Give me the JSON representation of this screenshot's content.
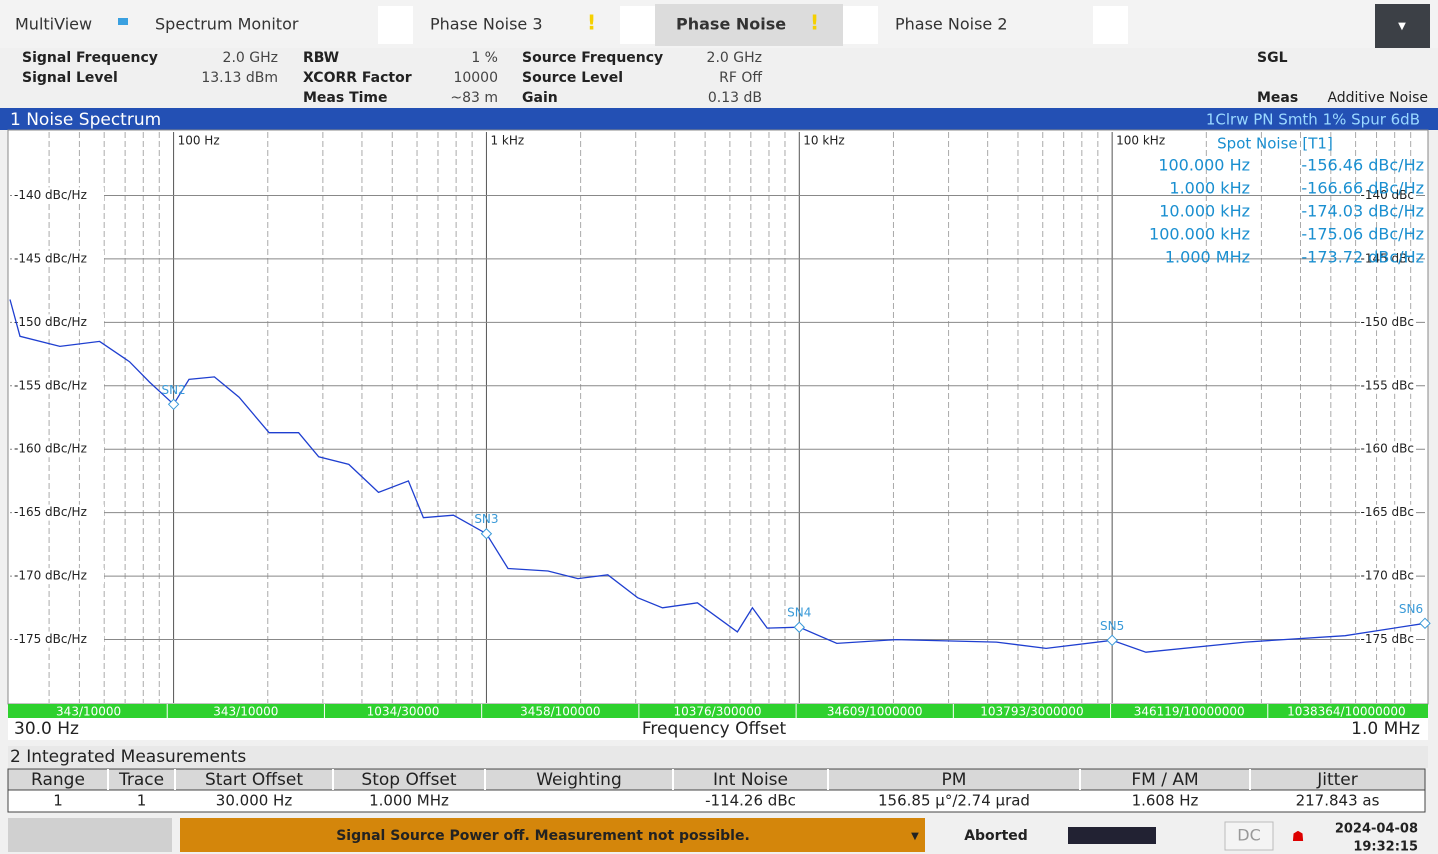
{
  "tabs": [
    {
      "label": "MultiView"
    },
    {
      "label": "Spectrum Monitor"
    },
    {
      "label": "Phase Noise 3",
      "warning": "!"
    },
    {
      "label": "Phase Noise",
      "warning": "!",
      "active": true
    },
    {
      "label": "Phase Noise 2"
    }
  ],
  "settings": [
    [
      {
        "label": "Signal Frequency",
        "value": "2.0 GHz"
      },
      {
        "label": "Signal Level",
        "value": "13.13 dBm"
      }
    ],
    [
      {
        "label": "RBW",
        "value": "1 %"
      },
      {
        "label": "XCORR Factor",
        "value": "10000"
      },
      {
        "label": "Meas Time",
        "value": "~83 m"
      }
    ],
    [
      {
        "label": "Source Frequency",
        "value": "2.0 GHz"
      },
      {
        "label": "Source Level",
        "value": "RF Off"
      },
      {
        "label": "Gain",
        "value": "0.13 dB"
      }
    ]
  ],
  "mode": "SGL",
  "meas": {
    "label": "Meas",
    "value": "Additive Noise"
  },
  "chart_data": {
    "type": "line",
    "title": "1 Noise Spectrum",
    "trace_info": "1Clrw PN Smth 1% Spur 6dB",
    "x_label": "Frequency Offset",
    "x_start_label": "30.0 Hz",
    "x_end_label": "1.0 MHz",
    "log_x": true,
    "xlim": [
      30,
      1000000
    ],
    "xticks": [
      {
        "value": 100,
        "label": "100 Hz"
      },
      {
        "value": 1000,
        "label": "1 kHz"
      },
      {
        "value": 10000,
        "label": "10 kHz"
      },
      {
        "value": 100000,
        "label": "100 kHz"
      }
    ],
    "ylim": [
      -180,
      -135
    ],
    "yticks": [
      {
        "value": -140,
        "label": "-140 dBc/Hz"
      },
      {
        "value": -145,
        "label": "-145 dBc/Hz"
      },
      {
        "value": -150,
        "label": "-150 dBc/Hz"
      },
      {
        "value": -155,
        "label": "-155 dBc/Hz"
      },
      {
        "value": -160,
        "label": "-160 dBc/Hz"
      },
      {
        "value": -165,
        "label": "-165 dBc/Hz"
      },
      {
        "value": -170,
        "label": "-170 dBc/Hz"
      },
      {
        "value": -175,
        "label": "-175 dBc/Hz"
      }
    ],
    "y_right_ticks": [
      {
        "value": -140,
        "label": "-140 dBc"
      },
      {
        "value": -145,
        "label": "-145 dBc"
      },
      {
        "value": -150,
        "label": "-150 dBc"
      },
      {
        "value": -155,
        "label": "-155 dBc"
      },
      {
        "value": -160,
        "label": "-160 dBc"
      },
      {
        "value": -165,
        "label": "-165 dBc"
      },
      {
        "value": -170,
        "label": "-170 dBc"
      },
      {
        "value": -175,
        "label": "-175 dBc"
      }
    ],
    "grid": true,
    "series": [
      {
        "color": "#1f3fd0",
        "x": [
          30,
          32.3,
          43.3,
          58,
          72.3,
          83.7,
          100,
          112,
          135,
          162,
          202,
          251,
          291,
          363,
          452,
          563,
          629,
          784,
          1000,
          1172,
          1573,
          1960,
          2443,
          3043,
          3655,
          4725,
          6339,
          7079,
          7896,
          10000,
          13183,
          20464,
          42658,
          61518,
          100000,
          128233,
          266686,
          555904,
          1000000
        ],
        "values": [
          -148.2,
          -151.1,
          -151.9,
          -151.5,
          -153.1,
          -154.7,
          -156.46,
          -154.5,
          -154.3,
          -155.9,
          -158.7,
          -158.7,
          -160.6,
          -161.2,
          -163.4,
          -162.5,
          -165.4,
          -165.2,
          -166.66,
          -169.4,
          -169.6,
          -170.2,
          -169.9,
          -171.7,
          -172.5,
          -172.1,
          -174.4,
          -172.5,
          -174.1,
          -174.03,
          -175.3,
          -175.0,
          -175.2,
          -175.7,
          -175.06,
          -176.0,
          -175.2,
          -174.7,
          -173.72
        ]
      }
    ],
    "markers": [
      {
        "label": "SN2",
        "x": 100,
        "y": -156.46
      },
      {
        "label": "SN3",
        "x": 1000,
        "y": -166.66
      },
      {
        "label": "SN4",
        "x": 10000,
        "y": -174.03
      },
      {
        "label": "SN5",
        "x": 100000,
        "y": -175.06
      },
      {
        "label": "SN6",
        "x": 1000000,
        "y": -173.72
      }
    ],
    "spot_noise": {
      "title": "Spot Noise [T1]",
      "rows": [
        {
          "offset": "100.000 Hz",
          "value": "-156.46 dBc/Hz"
        },
        {
          "offset": "1.000 kHz",
          "value": "-166.66 dBc/Hz"
        },
        {
          "offset": "10.000 kHz",
          "value": "-174.03 dBc/Hz"
        },
        {
          "offset": "100.000 kHz",
          "value": "-175.06 dBc/Hz"
        },
        {
          "offset": "1.000 MHz",
          "value": "-173.72 dBc/Hz"
        }
      ]
    },
    "segments": [
      "343/10000",
      "343/10000",
      "1034/30000",
      "3458/100000",
      "10376/300000",
      "34609/1000000",
      "103793/3000000",
      "346119/10000000",
      "1038364/10000000"
    ]
  },
  "integrated": {
    "title": "2 Integrated Measurements",
    "columns": [
      "Range",
      "Trace",
      "Start Offset",
      "Stop Offset",
      "Weighting",
      "Int Noise",
      "PM",
      "FM / AM",
      "Jitter"
    ],
    "rows": [
      [
        "1",
        "1",
        "30.000 Hz",
        "1.000 MHz",
        null,
        "-114.26 dBc",
        "156.85 µ°/2.74 µrad",
        "1.608 Hz",
        "217.843 as"
      ]
    ]
  },
  "status": {
    "message": "Signal Source Power off. Measurement not possible.",
    "state": "Aborted",
    "coupling": "DC",
    "date": "2024-04-08",
    "time": "19:32:15"
  }
}
